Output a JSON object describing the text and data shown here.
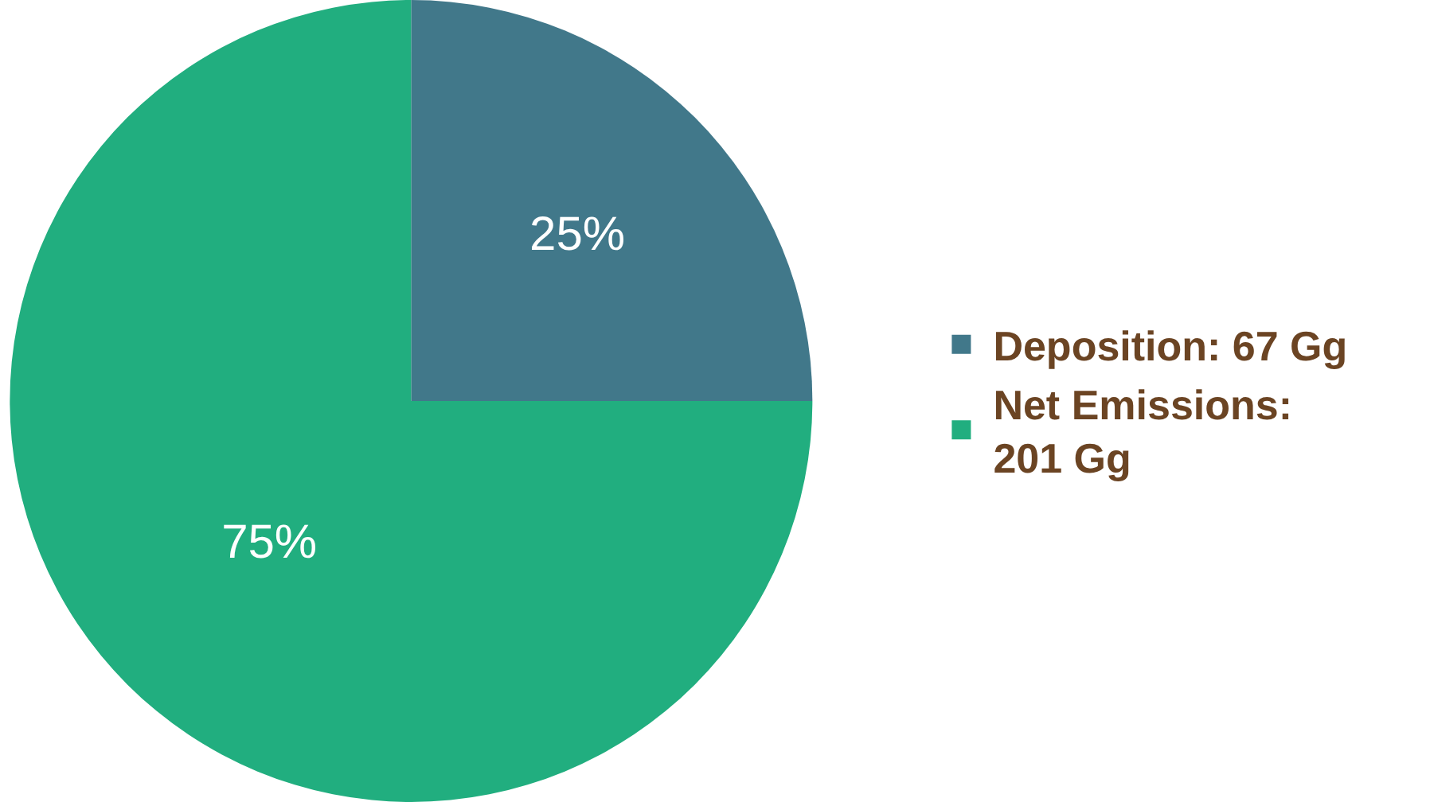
{
  "chart_data": {
    "type": "pie",
    "categories": [
      "Deposition: 67 Gg",
      "Net Emissions: 201 Gg"
    ],
    "values": [
      25,
      75
    ],
    "colors": [
      "#41788a",
      "#21ae7f"
    ],
    "value_labels": [
      "25%",
      "75%"
    ],
    "legend": "right"
  }
}
